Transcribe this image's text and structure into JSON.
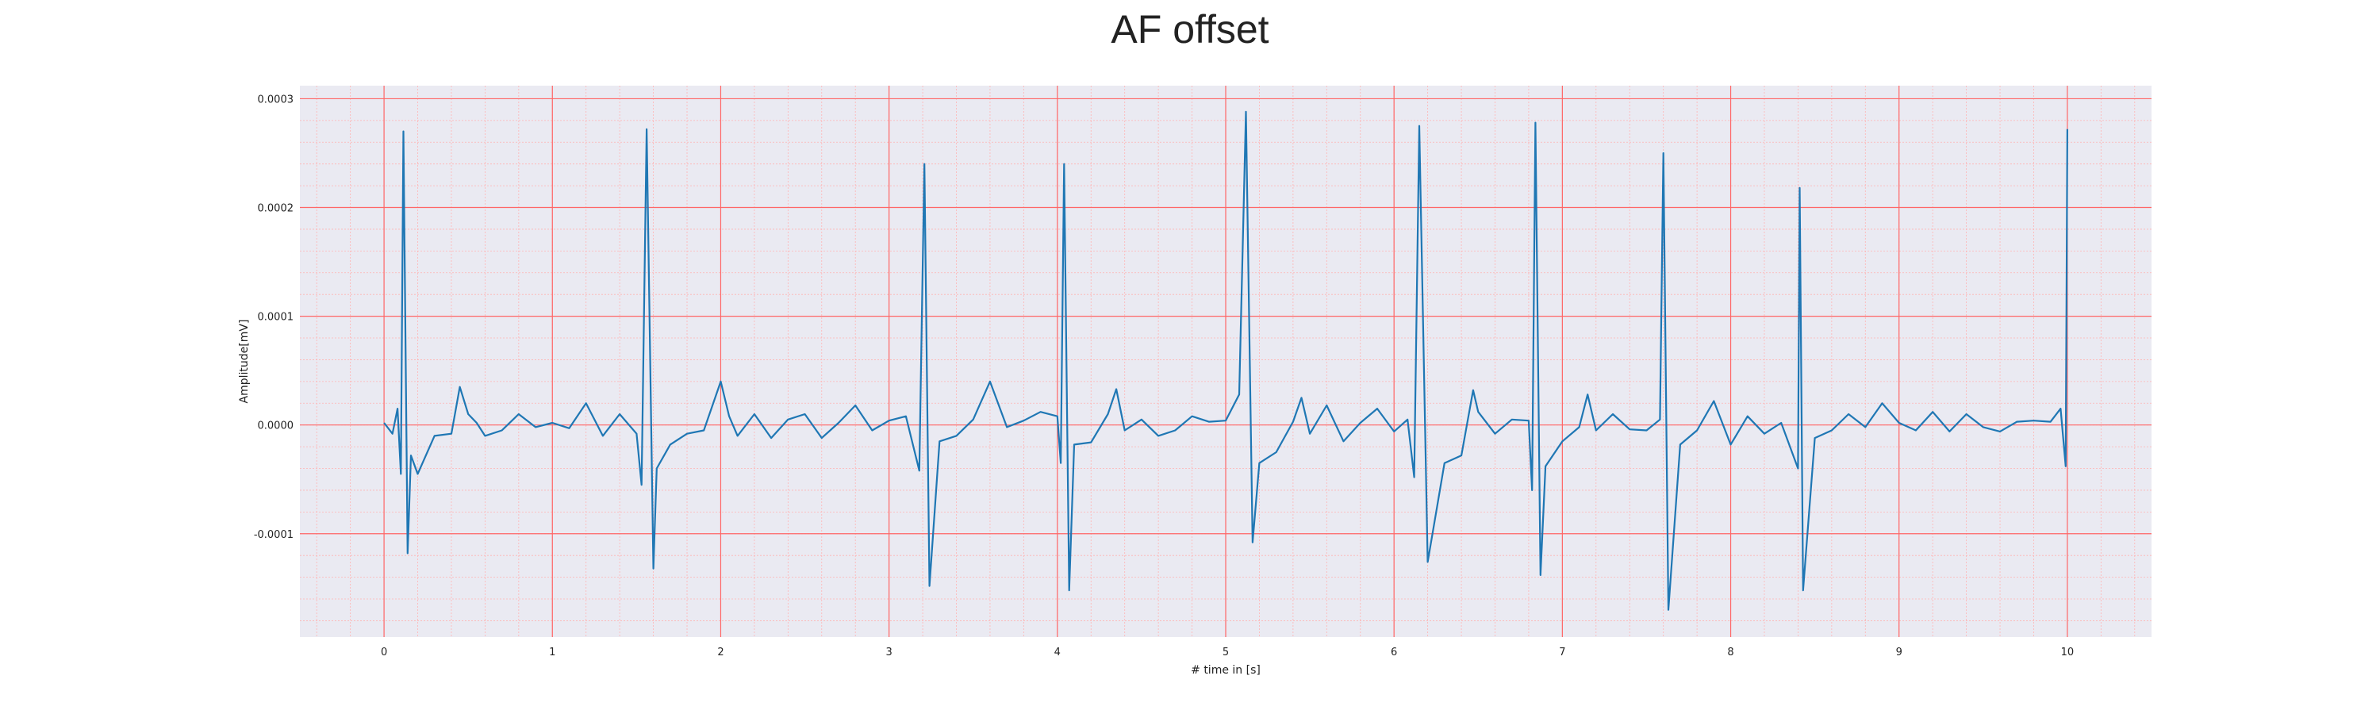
{
  "chart_data": {
    "type": "line",
    "title": "AF offset",
    "xlabel": "# time in [s]",
    "ylabel": "Amplitude[mV]",
    "xlim": [
      -0.5,
      10.5
    ],
    "ylim": [
      -0.000195,
      0.000312
    ],
    "x_ticks": [
      0,
      1,
      2,
      3,
      4,
      5,
      6,
      7,
      8,
      9,
      10
    ],
    "x_tick_labels": [
      "0",
      "1",
      "2",
      "3",
      "4",
      "5",
      "6",
      "7",
      "8",
      "9",
      "10"
    ],
    "y_ticks": [
      -0.0001,
      0.0,
      0.0001,
      0.0002,
      0.0003
    ],
    "y_tick_labels": [
      "-0.0001",
      "0.0000",
      "0.0001",
      "0.0002",
      "0.0003"
    ],
    "grid": "major and minor",
    "legend": "none",
    "series": [
      {
        "x": [
          0.0,
          0.05,
          0.08,
          0.1,
          0.115,
          0.14,
          0.16,
          0.2,
          0.3,
          0.4,
          0.45,
          0.5,
          0.55,
          0.6,
          0.7,
          0.8,
          0.9,
          1.0,
          1.1,
          1.2,
          1.3,
          1.4,
          1.5,
          1.53,
          1.56,
          1.6,
          1.62,
          1.7,
          1.8,
          1.9,
          2.0,
          2.05,
          2.1,
          2.2,
          2.3,
          2.4,
          2.5,
          2.6,
          2.7,
          2.8,
          2.9,
          3.0,
          3.1,
          3.18,
          3.21,
          3.24,
          3.3,
          3.4,
          3.5,
          3.6,
          3.7,
          3.8,
          3.9,
          4.0,
          4.02,
          4.04,
          4.07,
          4.1,
          4.2,
          4.3,
          4.35,
          4.4,
          4.5,
          4.6,
          4.7,
          4.8,
          4.9,
          5.0,
          5.08,
          5.12,
          5.16,
          5.2,
          5.3,
          5.4,
          5.45,
          5.5,
          5.6,
          5.7,
          5.8,
          5.9,
          6.0,
          6.08,
          6.12,
          6.15,
          6.2,
          6.3,
          6.4,
          6.47,
          6.5,
          6.6,
          6.7,
          6.8,
          6.82,
          6.84,
          6.87,
          6.9,
          7.0,
          7.1,
          7.15,
          7.2,
          7.3,
          7.4,
          7.5,
          7.58,
          7.6,
          7.63,
          7.7,
          7.8,
          7.9,
          8.0,
          8.1,
          8.2,
          8.3,
          8.4,
          8.41,
          8.43,
          8.5,
          8.6,
          8.7,
          8.8,
          8.9,
          9.0,
          9.1,
          9.2,
          9.3,
          9.4,
          9.5,
          9.6,
          9.7,
          9.8,
          9.9,
          9.96,
          9.99,
          10.0
        ],
        "values": [
          2e-06,
          -8e-06,
          1.5e-05,
          -4.5e-05,
          0.00027,
          -0.000118,
          -2.8e-05,
          -4.5e-05,
          -1e-05,
          -8e-06,
          3.5e-05,
          1e-05,
          2e-06,
          -1e-05,
          -5e-06,
          1e-05,
          -2e-06,
          2e-06,
          -3e-06,
          2e-05,
          -1e-05,
          1e-05,
          -8e-06,
          -5.5e-05,
          0.000272,
          -0.000132,
          -4e-05,
          -1.8e-05,
          -8e-06,
          -5e-06,
          4e-05,
          8e-06,
          -1e-05,
          1e-05,
          -1.2e-05,
          5e-06,
          1e-05,
          -1.2e-05,
          2e-06,
          1.8e-05,
          -5e-06,
          4e-06,
          8e-06,
          -4.2e-05,
          0.00024,
          -0.000148,
          -1.5e-05,
          -1e-05,
          5e-06,
          4e-05,
          -2e-06,
          4e-06,
          1.2e-05,
          8e-06,
          -3.5e-05,
          0.00024,
          -0.000152,
          -1.8e-05,
          -1.6e-05,
          1e-05,
          3.3e-05,
          -5e-06,
          5e-06,
          -1e-05,
          -5e-06,
          8e-06,
          3e-06,
          4e-06,
          2.8e-05,
          0.000288,
          -0.000108,
          -3.5e-05,
          -2.5e-05,
          3e-06,
          2.5e-05,
          -8e-06,
          1.8e-05,
          -1.5e-05,
          2e-06,
          1.5e-05,
          -6e-06,
          5e-06,
          -4.8e-05,
          0.000275,
          -0.000126,
          -3.5e-05,
          -2.8e-05,
          3.2e-05,
          1.2e-05,
          -8e-06,
          5e-06,
          4e-06,
          -6e-05,
          0.000278,
          -0.000138,
          -3.8e-05,
          -1.5e-05,
          -2e-06,
          2.8e-05,
          -5e-06,
          1e-05,
          -4e-06,
          -5e-06,
          5e-06,
          0.00025,
          -0.00017,
          -1.8e-05,
          -5e-06,
          2.2e-05,
          -1.8e-05,
          8e-06,
          -8e-06,
          2e-06,
          -4e-05,
          0.000218,
          -0.000152,
          -1.2e-05,
          -5e-06,
          1e-05,
          -2e-06,
          2e-05,
          2e-06,
          -5e-06,
          1.2e-05,
          -6e-06,
          1e-05,
          -2e-06,
          -6e-06,
          3e-06,
          4e-06,
          3e-06,
          1.5e-05,
          -3.8e-05,
          0.000272
        ]
      }
    ],
    "colors": {
      "line": "#1f77b4",
      "plot_background": "#eaeaf2",
      "major_grid": "#ff6666",
      "minor_grid": "#ffb3b3"
    }
  }
}
